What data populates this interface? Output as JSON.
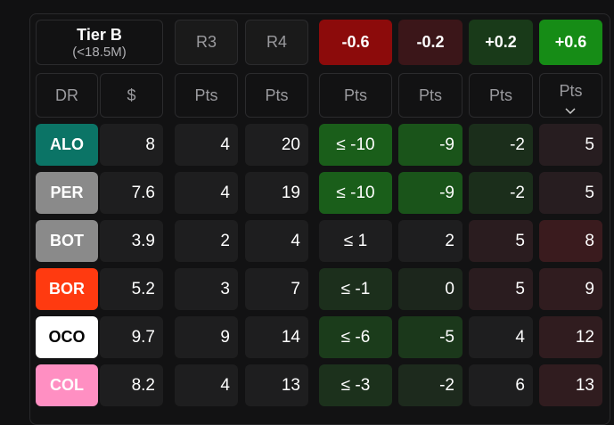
{
  "header": {
    "tier_title": "Tier B",
    "tier_subtitle": "(<18.5M)",
    "columns": [
      {
        "label": "R3",
        "color": "#1a1a1a"
      },
      {
        "label": "R4",
        "color": "#1a1a1a"
      },
      {
        "label": "-0.6",
        "color": "#8c0b0b"
      },
      {
        "label": "-0.2",
        "color": "#3b1619"
      },
      {
        "label": "+0.2",
        "color": "#193a19"
      },
      {
        "label": "+0.6",
        "color": "#168c16"
      }
    ]
  },
  "subheader": [
    "DR",
    "$",
    "Pts",
    "Pts",
    "Pts",
    "Pts",
    "Pts",
    "Pts"
  ],
  "rows": [
    {
      "team": "ALO",
      "badge": "#0b7466",
      "badge_text": "#ffffff",
      "cells": [
        "8",
        "4",
        "20",
        "≤ -10",
        "-9",
        "-2",
        "5"
      ],
      "shades": [
        "#1e1e1f",
        "#1e1e1f",
        "#1e1e1f",
        "#1a5e1a",
        "#1a541a",
        "#1b2e1b",
        "#271d20"
      ]
    },
    {
      "team": "PER",
      "badge": "#8a8a8a",
      "badge_text": "#ffffff",
      "cells": [
        "7.6",
        "4",
        "19",
        "≤ -10",
        "-9",
        "-2",
        "5"
      ],
      "shades": [
        "#1e1e1f",
        "#1e1e1f",
        "#1e1e1f",
        "#1a5e1a",
        "#1a541a",
        "#1b2e1b",
        "#271d20"
      ]
    },
    {
      "team": "BOT",
      "badge": "#8a8a8a",
      "badge_text": "#ffffff",
      "cells": [
        "3.9",
        "2",
        "4",
        "≤ 1",
        "2",
        "5",
        "8"
      ],
      "shades": [
        "#1e1e1f",
        "#1e1e1f",
        "#1e1e1f",
        "#1e1e1f",
        "#1e1e1f",
        "#2a1c1f",
        "#3a1b1e"
      ]
    },
    {
      "team": "BOR",
      "badge": "#ff3a10",
      "badge_text": "#ffffff",
      "cells": [
        "5.2",
        "3",
        "7",
        "≤ -1",
        "0",
        "5",
        "9"
      ],
      "shades": [
        "#1e1e1f",
        "#1e1e1f",
        "#1e1e1f",
        "#1c2f1c",
        "#1c261c",
        "#2a1c1f",
        "#301c1f"
      ]
    },
    {
      "team": "OCO",
      "badge": "#ffffff",
      "badge_text": "#000000",
      "cells": [
        "9.7",
        "9",
        "14",
        "≤ -6",
        "-5",
        "4",
        "12"
      ],
      "shades": [
        "#1e1e1f",
        "#1e1e1f",
        "#1e1e1f",
        "#1b3c1b",
        "#1b381b",
        "#1e1e1f",
        "#301c1f"
      ]
    },
    {
      "team": "COL",
      "badge": "#ff8fc2",
      "badge_text": "#ffffff",
      "cells": [
        "8.2",
        "4",
        "13",
        "≤ -3",
        "-2",
        "6",
        "13"
      ],
      "shades": [
        "#1e1e1f",
        "#1e1e1f",
        "#1e1e1f",
        "#1c311c",
        "#1d2a1d",
        "#1e1e1f",
        "#301c1f"
      ]
    }
  ]
}
